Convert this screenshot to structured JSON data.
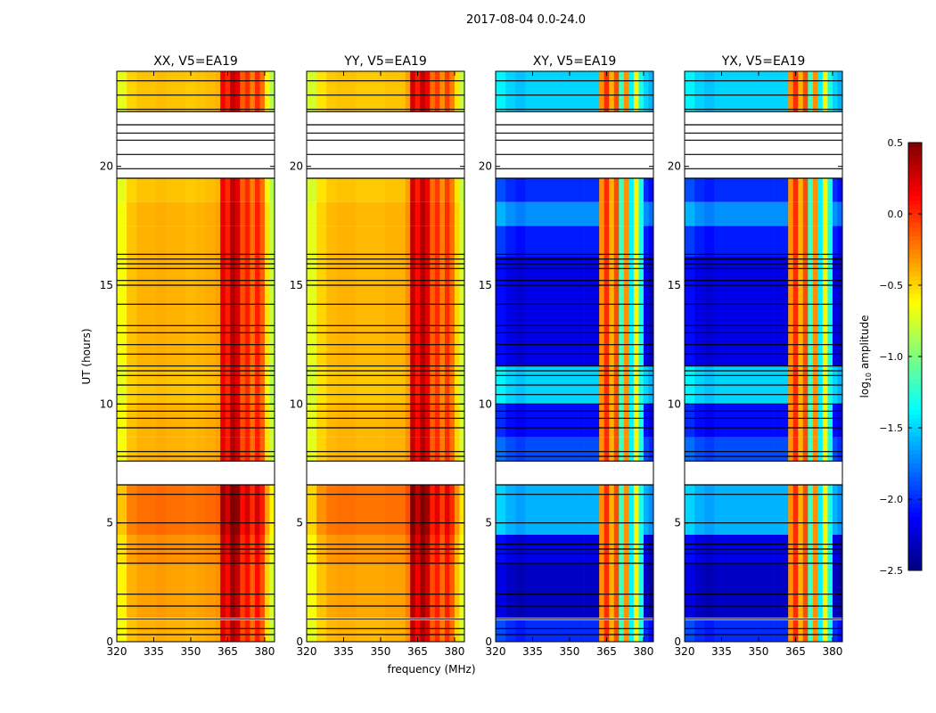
{
  "chart_data": {
    "type": "heatmap",
    "title": "2017-08-04 0.0-24.0",
    "xlabel": "frequency (MHz)",
    "ylabel": "UT (hours)",
    "xlim": [
      320,
      384
    ],
    "ylim": [
      0,
      24
    ],
    "xticks": [
      320,
      335,
      350,
      365,
      380
    ],
    "yticks": [
      0,
      5,
      10,
      15,
      20
    ],
    "colorbar": {
      "label_main": "log",
      "label_sub": "10",
      "label_rest": " amplitude",
      "range": [
        -2.5,
        0.5
      ],
      "ticks": [
        "0.5",
        "0.0",
        "−0.5",
        "−1.0",
        "−1.5",
        "−2.0",
        "−2.5"
      ],
      "tick_values": [
        0.5,
        0.0,
        -0.5,
        -1.0,
        -1.5,
        -2.0,
        -2.5
      ],
      "colormap": "jet"
    },
    "freq_bin_edges": [
      320,
      324,
      328,
      332,
      336,
      340,
      344,
      348,
      352,
      356,
      360,
      362,
      364,
      366,
      368,
      370,
      372,
      374,
      376,
      378,
      380,
      382,
      384
    ],
    "time_segments": [
      {
        "t": [
          0,
          0.9
        ],
        "offset_auto": 0,
        "offset_cross": 0.3
      },
      {
        "t": [
          1.0,
          3.3
        ],
        "offset_auto": 0.05,
        "offset_cross": 0
      },
      {
        "t": [
          3.3,
          4.5
        ],
        "offset_auto": 0.1,
        "offset_cross": 0.1
      },
      {
        "t": [
          4.5,
          6.6
        ],
        "offset_auto": 0.2,
        "offset_cross": 0.7
      },
      {
        "t": [
          7.6,
          8.6
        ],
        "offset_auto": 0,
        "offset_cross": 0.4
      },
      {
        "t": [
          8.6,
          10.0
        ],
        "offset_auto": 0,
        "offset_cross": 0.2
      },
      {
        "t": [
          10.0,
          11.6
        ],
        "offset_auto": -0.05,
        "offset_cross": 0.8
      },
      {
        "t": [
          11.6,
          16.2
        ],
        "offset_auto": 0,
        "offset_cross": 0.1
      },
      {
        "t": [
          16.2,
          17.5
        ],
        "offset_auto": 0,
        "offset_cross": 0.25
      },
      {
        "t": [
          17.5,
          18.5
        ],
        "offset_auto": 0,
        "offset_cross": 0.6
      },
      {
        "t": [
          18.5,
          19.5
        ],
        "offset_auto": -0.05,
        "offset_cross": 0.3
      },
      {
        "t": [
          22.3,
          24.0
        ],
        "offset_auto": -0.05,
        "offset_cross": 0.8
      }
    ],
    "flag_lines_hours": [
      0.3,
      0.55,
      0.95,
      1.5,
      2.0,
      3.3,
      3.7,
      3.9,
      4.1,
      5.0,
      6.2,
      6.6,
      7.6,
      7.8,
      8.0,
      9.0,
      9.4,
      9.7,
      10.0,
      10.4,
      10.8,
      11.2,
      11.4,
      11.6,
      12.1,
      12.5,
      13.0,
      13.3,
      14.2,
      15.0,
      15.2,
      15.7,
      15.9,
      16.1,
      16.3,
      19.5,
      19.9,
      20.5,
      21.1,
      21.4,
      21.75,
      22.3,
      22.4,
      23.0,
      23.6
    ],
    "panels": [
      {
        "title": "XX, V5=EA19",
        "kind": "auto",
        "spectrum": [
          -0.65,
          -0.45,
          -0.4,
          -0.4,
          -0.38,
          -0.4,
          -0.4,
          -0.42,
          -0.4,
          -0.38,
          -0.35,
          0.2,
          0.05,
          0.35,
          0.25,
          -0.1,
          0.05,
          -0.2,
          0.05,
          -0.15,
          -0.55,
          -0.8
        ]
      },
      {
        "title": "YY, V5=EA19",
        "kind": "auto",
        "spectrum": [
          -0.7,
          -0.5,
          -0.42,
          -0.4,
          -0.4,
          -0.42,
          -0.42,
          -0.42,
          -0.4,
          -0.4,
          -0.3,
          0.3,
          0.1,
          0.35,
          0.2,
          -0.15,
          0.0,
          -0.25,
          0.0,
          -0.2,
          -0.5,
          -0.75
        ]
      },
      {
        "title": "XY, V5=EA19",
        "kind": "cross",
        "spectrum": [
          -2.2,
          -2.3,
          -2.35,
          -2.3,
          -2.3,
          -2.3,
          -2.3,
          -2.3,
          -2.3,
          -2.3,
          -2.3,
          -0.3,
          0.0,
          -0.4,
          -0.1,
          -1.2,
          -0.3,
          -1.4,
          -0.6,
          -1.3,
          -2.3,
          -2.4
        ]
      },
      {
        "title": "YX, V5=EA19",
        "kind": "cross",
        "spectrum": [
          -2.2,
          -2.3,
          -2.35,
          -2.3,
          -2.3,
          -2.3,
          -2.3,
          -2.3,
          -2.3,
          -2.3,
          -2.3,
          -0.3,
          0.0,
          -0.4,
          -0.1,
          -1.2,
          -0.3,
          -1.4,
          -0.6,
          -1.3,
          -2.3,
          -2.4
        ]
      }
    ]
  }
}
